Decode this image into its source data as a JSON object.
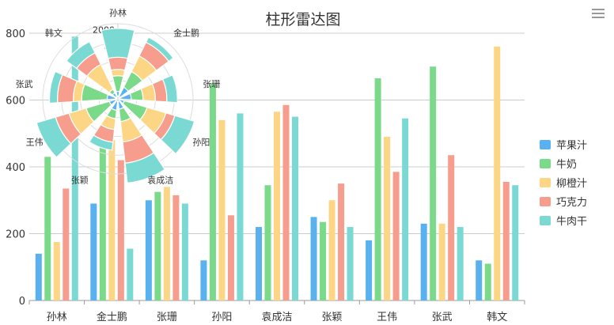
{
  "chart_data": [
    {
      "type": "bar",
      "title": "柱形雷达图",
      "categories": [
        "孙林",
        "金士鹏",
        "张珊",
        "孙阳",
        "袁成洁",
        "张颖",
        "王伟",
        "张武",
        "韩文"
      ],
      "ylim": [
        0,
        800
      ],
      "yticks": [
        0,
        200,
        400,
        600,
        800
      ],
      "grid": true,
      "legend_position": "right",
      "series": [
        {
          "name": "苹果汁",
          "color": "#5ab1ef",
          "values": [
            140,
            290,
            300,
            120,
            220,
            250,
            180,
            230,
            120
          ]
        },
        {
          "name": "牛奶",
          "color": "#7bd98a",
          "values": [
            430,
            480,
            325,
            650,
            345,
            235,
            665,
            700,
            110
          ]
        },
        {
          "name": "柳橙汁",
          "color": "#fcd684",
          "values": [
            175,
            480,
            340,
            540,
            565,
            300,
            490,
            230,
            760
          ]
        },
        {
          "name": "巧克力",
          "color": "#f69d8e",
          "values": [
            335,
            420,
            315,
            255,
            585,
            350,
            385,
            435,
            355
          ]
        },
        {
          "name": "牛肉干",
          "color": "#7bd9d4",
          "values": [
            790,
            155,
            290,
            560,
            550,
            220,
            545,
            220,
            345
          ]
        }
      ]
    },
    {
      "type": "polar-bar",
      "categories": [
        "孙林",
        "金士鹏",
        "张珊",
        "孙阳",
        "袁成洁",
        "张颖",
        "王伟",
        "张武",
        "韩文"
      ],
      "visible_tick_labels": [
        "2000",
        "15",
        "0"
      ],
      "rmax": 2000,
      "stacked": true
    }
  ],
  "toolbar": {
    "menu_icon": "hamburger-menu-icon"
  }
}
